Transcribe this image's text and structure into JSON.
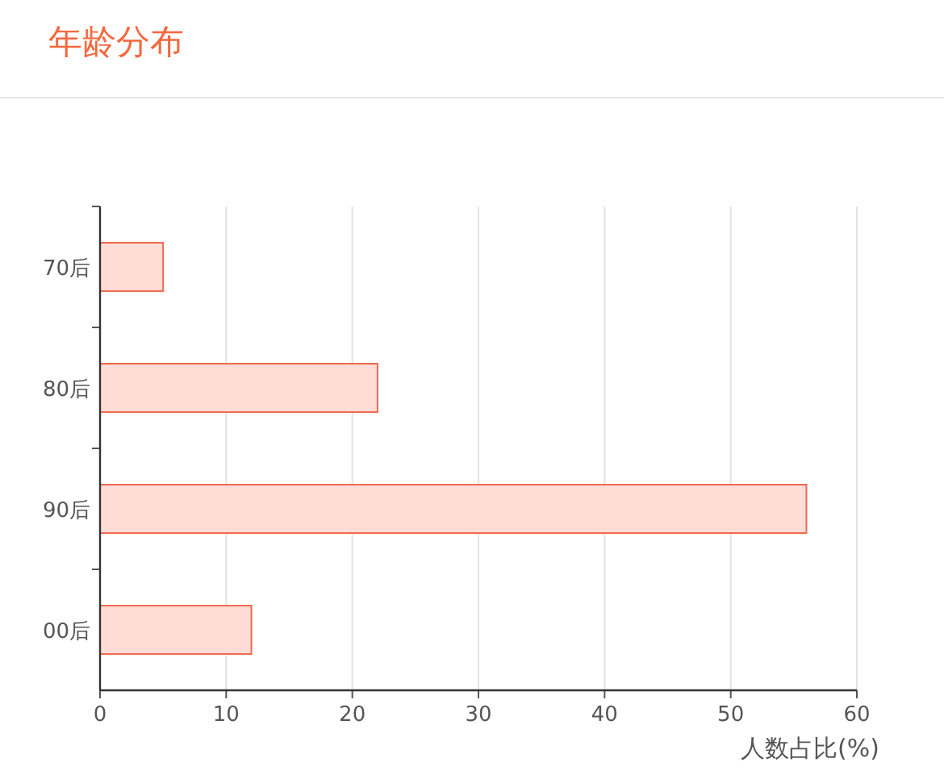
{
  "chart_data": {
    "type": "bar",
    "orientation": "horizontal",
    "title": "年龄分布",
    "xlabel": "人数占比(%)",
    "categories": [
      "70后",
      "80后",
      "90后",
      "00后"
    ],
    "values": [
      5,
      22,
      56,
      12
    ],
    "color": "#ffddd6",
    "xlim": [
      0,
      60
    ],
    "xticks": [
      0,
      10,
      20,
      30,
      40,
      50,
      60
    ],
    "grid": "x"
  }
}
